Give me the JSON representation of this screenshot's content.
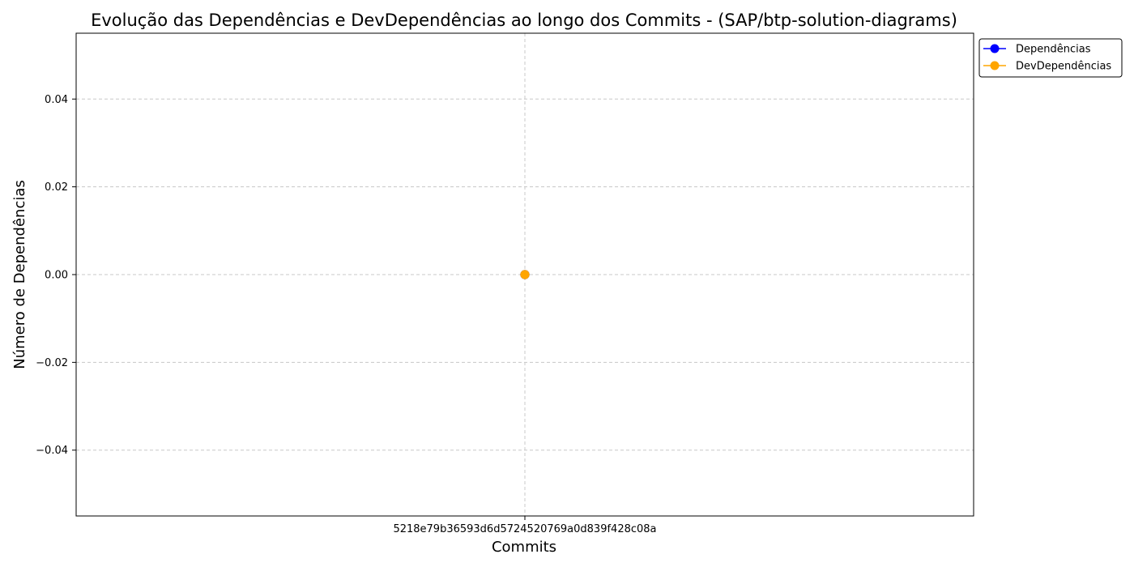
{
  "chart_data": {
    "type": "line",
    "title": "Evolução das Dependências e DevDependências ao longo dos Commits - (SAP/btp-solution-diagrams)",
    "xlabel": "Commits",
    "ylabel": "Número de Dependências",
    "categories": [
      "5218e79b36593d6d5724520769a0d839f428c08a"
    ],
    "ylim": [
      -0.055,
      0.055
    ],
    "yticks": [
      -0.04,
      -0.02,
      0.0,
      0.02,
      0.04
    ],
    "ytick_labels": [
      "−0.04",
      "−0.02",
      "0.00",
      "0.02",
      "0.04"
    ],
    "grid": true,
    "legend_position": "outside-top-right",
    "series": [
      {
        "name": "Dependências",
        "values": [
          0
        ],
        "color": "#0000ff",
        "marker": "circle"
      },
      {
        "name": "DevDependências",
        "values": [
          0
        ],
        "color": "#ffa500",
        "marker": "circle"
      }
    ]
  }
}
